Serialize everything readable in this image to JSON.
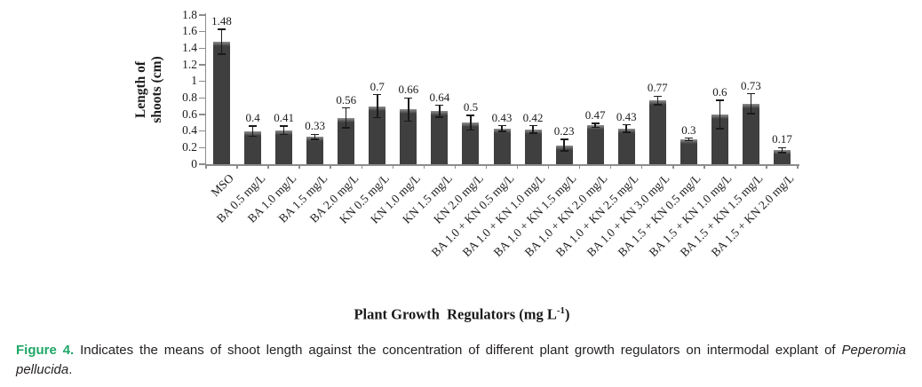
{
  "figure": {
    "caption": {
      "label": "Figure 4.",
      "body": " Indicates the means of shoot length against the concentration of different plant growth regulators on intermodal explant of ",
      "species": "Peperomia pellucida",
      "end": ".",
      "label_color": "#1FA766"
    }
  },
  "chart_data": {
    "type": "bar",
    "title": "",
    "xlabel": "Plant Growth Regulators (mg L-1)",
    "xlabel_parts": {
      "pre": "Plant Growth  Regulators (mg L",
      "sup": "-1",
      "post": ")"
    },
    "ylabel": "Length of shoots (cm)",
    "ylabel_lines": [
      "Length of",
      "shoots (cm)"
    ],
    "ylim": [
      0,
      1.8
    ],
    "ytick_step": 0.2,
    "grid": false,
    "legend": "none",
    "bar_color": "#3F3F3F",
    "bar_highlight": "#8F8F8F",
    "axis_color": "#8C8C8C",
    "error_color": "#1A1A1A",
    "categories": [
      "MSO",
      "BA 0.5 mg/L",
      "BA 1.0 mg/L",
      "BA 1.5 mg/L",
      "BA 2.0 mg/L",
      "KN 0.5 mg/L",
      "KN 1.0 mg/L",
      "KN 1.5 mg/L",
      "KN 2.0 mg/L",
      "BA 1.0 + KN 0.5 mg/L",
      "BA 1.0 + KN 1.0 mg/L",
      "BA 1.0 + KN 1.5 mg/L",
      "BA 1.0 + KN 2.0 mg/L",
      "BA 1.0 + KN 2.5 mg/L",
      "BA 1.0 + KN 3.0 mg/L",
      "BA 1.5 + KN 0.5 mg/L",
      "BA 1.5 + KN 1.0 mg/L",
      "BA 1.5 + KN 1.5 mg/L",
      "BA 1.5 + KN 2.0 mg/L"
    ],
    "values": [
      1.48,
      0.4,
      0.41,
      0.33,
      0.56,
      0.7,
      0.66,
      0.64,
      0.5,
      0.43,
      0.42,
      0.23,
      0.47,
      0.43,
      0.77,
      0.3,
      0.6,
      0.73,
      0.17
    ],
    "errors": [
      0.15,
      0.06,
      0.05,
      0.03,
      0.12,
      0.14,
      0.14,
      0.07,
      0.09,
      0.035,
      0.045,
      0.07,
      0.025,
      0.045,
      0.05,
      0.015,
      0.17,
      0.12,
      0.03
    ]
  }
}
